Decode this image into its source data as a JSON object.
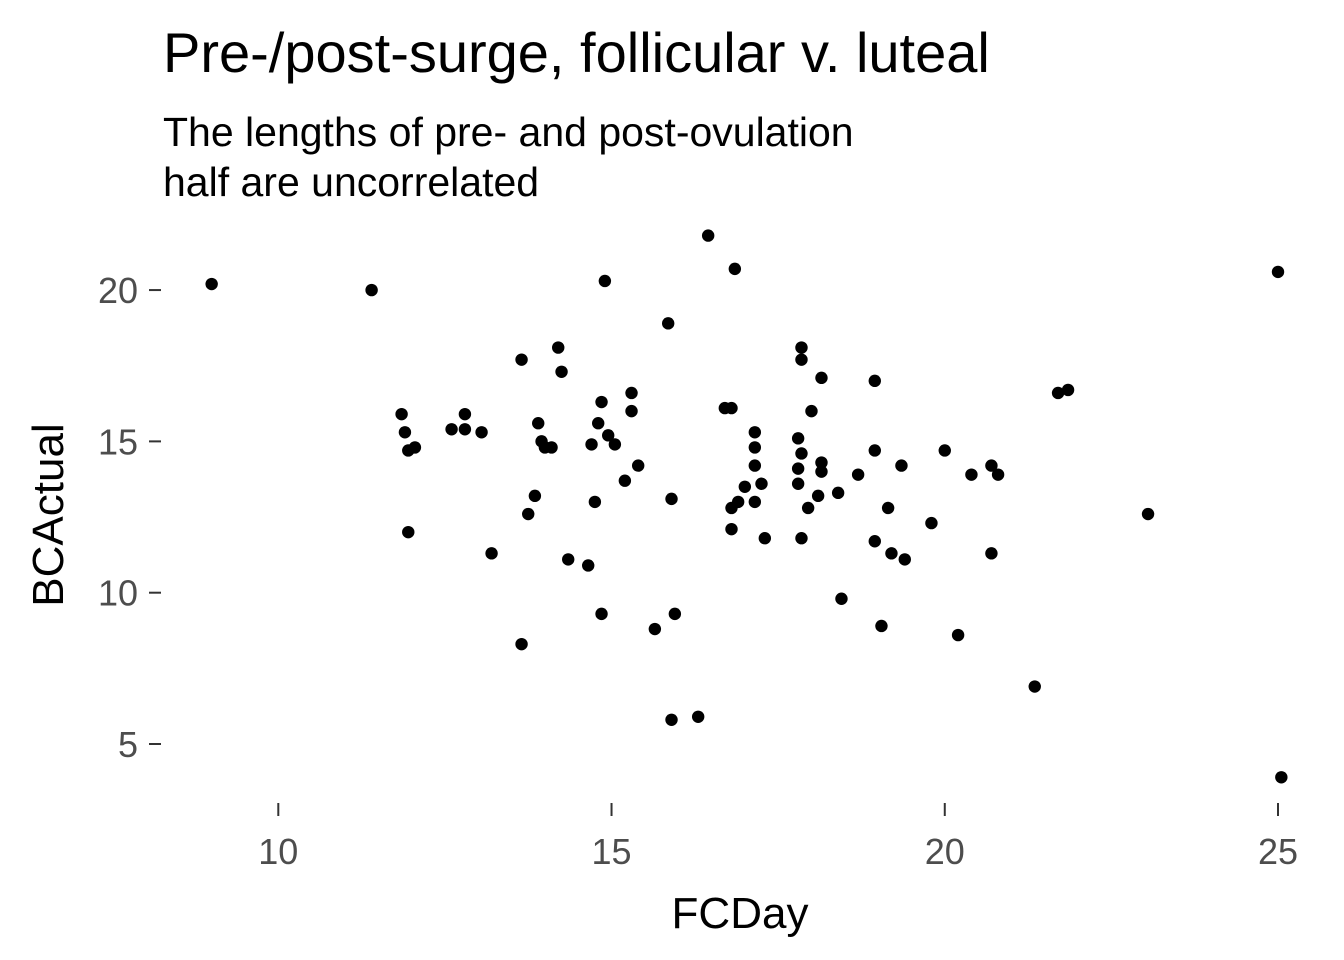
{
  "chart_data": {
    "type": "scatter",
    "title": "Pre-/post-surge, follicular v. luteal",
    "subtitle": [
      "The lengths of pre- and post-ovulation",
      "half are uncorrelated"
    ],
    "xlabel": "FCDay",
    "ylabel": "BCActual",
    "xlim": [
      8.27,
      25.33
    ],
    "ylim": [
      3.15,
      22.15
    ],
    "xticks": [
      10,
      15,
      20,
      25
    ],
    "yticks": [
      5,
      10,
      15,
      20
    ],
    "grid": false,
    "legend": "none",
    "point_color": "#000000",
    "points": [
      [
        9.0,
        20.2
      ],
      [
        11.4,
        20.0
      ],
      [
        11.85,
        15.9
      ],
      [
        11.9,
        15.3
      ],
      [
        11.95,
        14.7
      ],
      [
        12.05,
        14.8
      ],
      [
        11.95,
        12.0
      ],
      [
        12.6,
        15.4
      ],
      [
        12.8,
        15.4
      ],
      [
        12.8,
        15.9
      ],
      [
        13.05,
        15.3
      ],
      [
        13.2,
        11.3
      ],
      [
        13.65,
        17.7
      ],
      [
        13.65,
        8.3
      ],
      [
        13.75,
        12.6
      ],
      [
        13.85,
        13.2
      ],
      [
        13.9,
        15.6
      ],
      [
        13.95,
        15.0
      ],
      [
        14.0,
        14.8
      ],
      [
        14.1,
        14.8
      ],
      [
        14.2,
        18.1
      ],
      [
        14.25,
        17.3
      ],
      [
        14.35,
        11.1
      ],
      [
        14.65,
        10.9
      ],
      [
        14.7,
        14.9
      ],
      [
        14.75,
        13.0
      ],
      [
        14.8,
        15.6
      ],
      [
        14.85,
        16.3
      ],
      [
        14.85,
        9.3
      ],
      [
        14.9,
        20.3
      ],
      [
        14.95,
        15.2
      ],
      [
        15.05,
        14.9
      ],
      [
        15.2,
        13.7
      ],
      [
        15.3,
        16.6
      ],
      [
        15.3,
        16.0
      ],
      [
        15.4,
        14.2
      ],
      [
        15.65,
        8.8
      ],
      [
        15.85,
        18.9
      ],
      [
        15.9,
        13.1
      ],
      [
        15.9,
        5.8
      ],
      [
        15.95,
        9.3
      ],
      [
        16.3,
        5.9
      ],
      [
        16.45,
        21.8
      ],
      [
        16.7,
        16.1
      ],
      [
        16.8,
        16.1
      ],
      [
        16.8,
        12.1
      ],
      [
        16.8,
        12.8
      ],
      [
        16.85,
        20.7
      ],
      [
        16.9,
        13.0
      ],
      [
        17.0,
        13.5
      ],
      [
        17.15,
        15.3
      ],
      [
        17.15,
        14.8
      ],
      [
        17.15,
        14.2
      ],
      [
        17.15,
        13.0
      ],
      [
        17.25,
        13.6
      ],
      [
        17.3,
        11.8
      ],
      [
        17.8,
        15.1
      ],
      [
        17.8,
        14.1
      ],
      [
        17.8,
        13.6
      ],
      [
        17.85,
        18.1
      ],
      [
        17.85,
        17.7
      ],
      [
        17.85,
        14.6
      ],
      [
        17.85,
        11.8
      ],
      [
        17.95,
        12.8
      ],
      [
        18.0,
        16.0
      ],
      [
        18.1,
        13.2
      ],
      [
        18.15,
        14.3
      ],
      [
        18.15,
        14.0
      ],
      [
        18.15,
        17.1
      ],
      [
        18.4,
        13.3
      ],
      [
        18.45,
        9.8
      ],
      [
        18.7,
        13.9
      ],
      [
        18.95,
        17.0
      ],
      [
        18.95,
        14.7
      ],
      [
        18.95,
        11.7
      ],
      [
        19.05,
        8.9
      ],
      [
        19.15,
        12.8
      ],
      [
        19.2,
        11.3
      ],
      [
        19.35,
        14.2
      ],
      [
        19.4,
        11.1
      ],
      [
        19.8,
        12.3
      ],
      [
        20.0,
        14.7
      ],
      [
        20.2,
        8.6
      ],
      [
        20.4,
        13.9
      ],
      [
        20.7,
        14.2
      ],
      [
        20.7,
        11.3
      ],
      [
        20.8,
        13.9
      ],
      [
        21.35,
        6.9
      ],
      [
        21.7,
        16.6
      ],
      [
        21.85,
        16.7
      ],
      [
        23.05,
        12.6
      ],
      [
        25.0,
        20.6
      ],
      [
        25.05,
        3.9
      ]
    ]
  }
}
